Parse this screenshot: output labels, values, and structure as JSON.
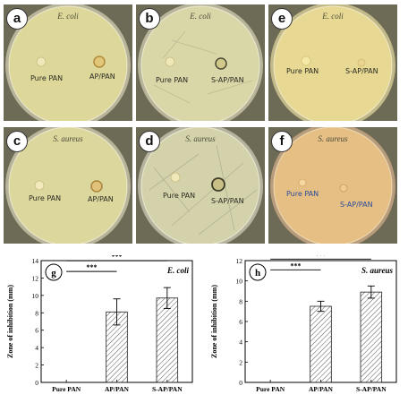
{
  "panels": [
    {
      "letter": "a",
      "title": "E. coli",
      "label_left": "Pure PAN",
      "label_right": "AP/PAN",
      "tone": "#ddd79a",
      "ink": "dark"
    },
    {
      "letter": "b",
      "title": "E. coli",
      "label_left": "Pure PAN",
      "label_right": "S-AP/PAN",
      "tone": "#d9d6a8",
      "ink": "dark"
    },
    {
      "letter": "e",
      "title": "E. coli",
      "label_left": "Pure PAN",
      "label_right": "S-AP/PAN",
      "tone": "#e7d993",
      "ink": "dark"
    },
    {
      "letter": "c",
      "title": "S. aureus",
      "label_left": "Pure PAN",
      "label_right": "AP/PAN",
      "tone": "#dcd79c",
      "ink": "dark"
    },
    {
      "letter": "d",
      "title": "S. aureus",
      "label_left": "Pure PAN",
      "label_right": "S-AP/PAN",
      "tone": "#d4d2ab",
      "ink": "dark"
    },
    {
      "letter": "f",
      "title": "S. aureus",
      "label_left": "Pure PAN",
      "label_right": "S-AP/PAN",
      "tone": "#e6bf84",
      "ink": "blue"
    }
  ],
  "chart_data": [
    {
      "type": "bar",
      "panel": "g",
      "organism": "E. coli",
      "ylabel": "Zone of inhibition (mm)",
      "categories": [
        "Pure PAN",
        "AP/PAN",
        "S-AP/PAN"
      ],
      "values": [
        0,
        8.1,
        9.7
      ],
      "errors": [
        0,
        1.5,
        1.2
      ],
      "ylim": [
        0,
        14
      ],
      "yticks": [
        "0",
        "2",
        "4",
        "6",
        "8",
        "10",
        "12",
        "14"
      ],
      "significance": [
        "***",
        "***"
      ]
    },
    {
      "type": "bar",
      "panel": "h",
      "organism": "S. aureus",
      "ylabel": "Zone of inhibition (mm)",
      "categories": [
        "Pure PAN",
        "AP/PAN",
        "S-AP/PAN"
      ],
      "values": [
        0,
        7.5,
        8.9
      ],
      "errors": [
        0,
        0.5,
        0.6
      ],
      "ylim": [
        0,
        12
      ],
      "yticks": [
        "0",
        "2",
        "4",
        "6",
        "8",
        "10",
        "12"
      ],
      "significance": [
        "***",
        "***"
      ]
    }
  ]
}
